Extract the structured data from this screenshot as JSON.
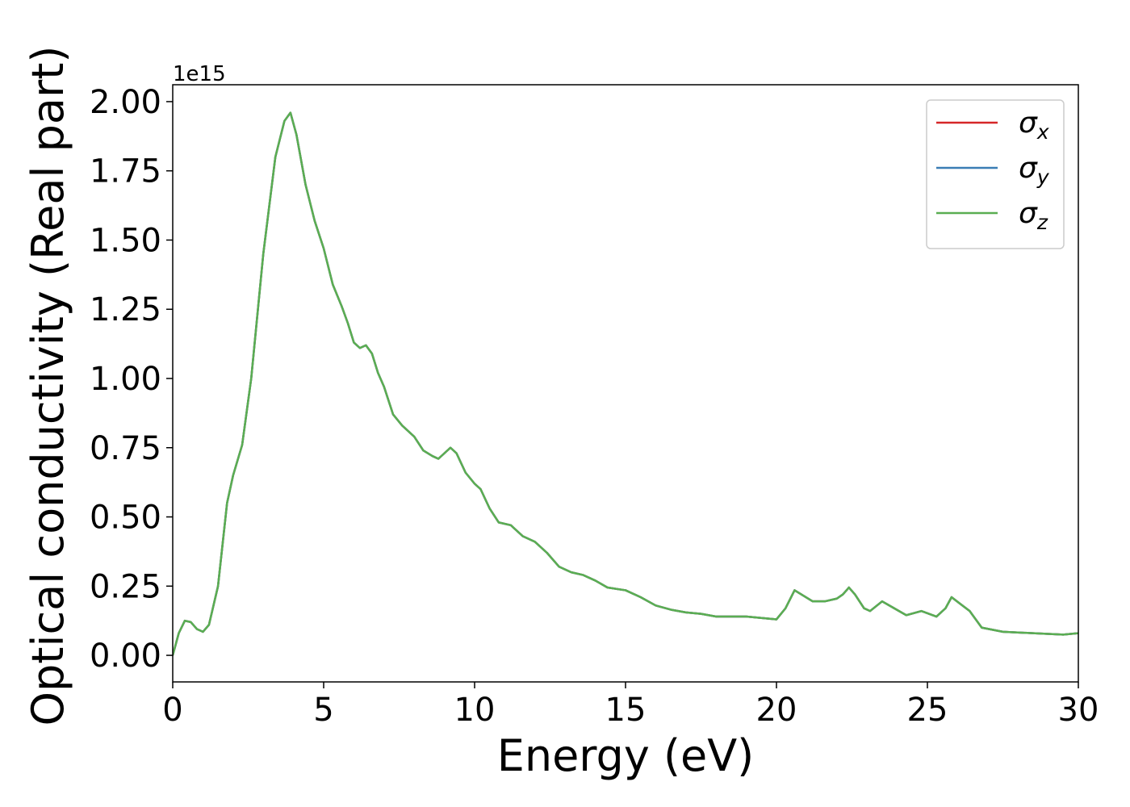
{
  "chart_data": {
    "type": "line",
    "xlabel": "Energy (eV)",
    "ylabel": "Optical conductivity (Real part)",
    "y_offset_label": "1e15",
    "xlim": [
      0,
      30
    ],
    "xticks": [
      0,
      5,
      10,
      15,
      20,
      25,
      30
    ],
    "ylim": [
      -0.096,
      2.061
    ],
    "yticks": [
      {
        "value": 0,
        "label": "0.00"
      },
      {
        "value": 0.25,
        "label": "0.25"
      },
      {
        "value": 0.5,
        "label": "0.50"
      },
      {
        "value": 0.75,
        "label": "0.75"
      },
      {
        "value": 1,
        "label": "1.00"
      },
      {
        "value": 1.25,
        "label": "1.25"
      },
      {
        "value": 1.5,
        "label": "1.50"
      },
      {
        "value": 1.75,
        "label": "1.75"
      },
      {
        "value": 2,
        "label": "2.00"
      }
    ],
    "legend": "upper right",
    "grid": false,
    "x": [
      0,
      0.2,
      0.4,
      0.6,
      0.8,
      1.0,
      1.2,
      1.5,
      1.8,
      2.0,
      2.3,
      2.6,
      3.0,
      3.4,
      3.7,
      3.9,
      4.1,
      4.4,
      4.7,
      5.0,
      5.3,
      5.6,
      5.8,
      6.0,
      6.2,
      6.4,
      6.6,
      6.8,
      7.0,
      7.3,
      7.6,
      8.0,
      8.3,
      8.6,
      8.8,
      9.0,
      9.2,
      9.4,
      9.7,
      10.0,
      10.2,
      10.5,
      10.8,
      11.2,
      11.6,
      12.0,
      12.4,
      12.8,
      13.2,
      13.6,
      14.0,
      14.4,
      15.0,
      15.5,
      16.0,
      16.5,
      17.0,
      17.5,
      18.0,
      19.0,
      19.5,
      20.0,
      20.3,
      20.6,
      20.9,
      21.2,
      21.6,
      22.0,
      22.2,
      22.4,
      22.6,
      22.9,
      23.1,
      23.5,
      23.9,
      24.3,
      24.8,
      25.3,
      25.6,
      25.8,
      26.1,
      26.4,
      26.8,
      27.5,
      28.5,
      29.5,
      30.0
    ],
    "series": [
      {
        "name": "σx",
        "color": "#d62728",
        "values": [
          0,
          0.08,
          0.125,
          0.12,
          0.095,
          0.085,
          0.11,
          0.25,
          0.55,
          0.65,
          0.76,
          1.0,
          1.45,
          1.8,
          1.93,
          1.96,
          1.88,
          1.7,
          1.57,
          1.47,
          1.34,
          1.26,
          1.2,
          1.13,
          1.11,
          1.12,
          1.09,
          1.02,
          0.97,
          0.87,
          0.83,
          0.79,
          0.74,
          0.72,
          0.71,
          0.73,
          0.75,
          0.73,
          0.66,
          0.62,
          0.6,
          0.53,
          0.48,
          0.47,
          0.43,
          0.41,
          0.37,
          0.32,
          0.3,
          0.29,
          0.27,
          0.245,
          0.235,
          0.21,
          0.18,
          0.165,
          0.155,
          0.15,
          0.14,
          0.14,
          0.135,
          0.13,
          0.17,
          0.235,
          0.215,
          0.195,
          0.195,
          0.205,
          0.22,
          0.245,
          0.22,
          0.17,
          0.16,
          0.195,
          0.17,
          0.145,
          0.16,
          0.14,
          0.17,
          0.21,
          0.185,
          0.16,
          0.1,
          0.085,
          0.08,
          0.075,
          0.08
        ]
      },
      {
        "name": "σy",
        "color": "#3a7db5",
        "values": [
          0,
          0.08,
          0.125,
          0.12,
          0.095,
          0.085,
          0.11,
          0.25,
          0.55,
          0.65,
          0.76,
          1.0,
          1.45,
          1.8,
          1.93,
          1.96,
          1.88,
          1.7,
          1.57,
          1.47,
          1.34,
          1.26,
          1.2,
          1.13,
          1.11,
          1.12,
          1.09,
          1.02,
          0.97,
          0.87,
          0.83,
          0.79,
          0.74,
          0.72,
          0.71,
          0.73,
          0.75,
          0.73,
          0.66,
          0.62,
          0.6,
          0.53,
          0.48,
          0.47,
          0.43,
          0.41,
          0.37,
          0.32,
          0.3,
          0.29,
          0.27,
          0.245,
          0.235,
          0.21,
          0.18,
          0.165,
          0.155,
          0.15,
          0.14,
          0.14,
          0.135,
          0.13,
          0.17,
          0.235,
          0.215,
          0.195,
          0.195,
          0.205,
          0.22,
          0.245,
          0.22,
          0.17,
          0.16,
          0.195,
          0.17,
          0.145,
          0.16,
          0.14,
          0.17,
          0.21,
          0.185,
          0.16,
          0.1,
          0.085,
          0.08,
          0.075,
          0.08
        ]
      },
      {
        "name": "σz",
        "color": "#5aae52",
        "values": [
          0,
          0.08,
          0.125,
          0.12,
          0.095,
          0.085,
          0.11,
          0.25,
          0.55,
          0.65,
          0.76,
          1.0,
          1.45,
          1.8,
          1.93,
          1.96,
          1.88,
          1.7,
          1.57,
          1.47,
          1.34,
          1.26,
          1.2,
          1.13,
          1.11,
          1.12,
          1.09,
          1.02,
          0.97,
          0.87,
          0.83,
          0.79,
          0.74,
          0.72,
          0.71,
          0.73,
          0.75,
          0.73,
          0.66,
          0.62,
          0.6,
          0.53,
          0.48,
          0.47,
          0.43,
          0.41,
          0.37,
          0.32,
          0.3,
          0.29,
          0.27,
          0.245,
          0.235,
          0.21,
          0.18,
          0.165,
          0.155,
          0.15,
          0.14,
          0.14,
          0.135,
          0.13,
          0.17,
          0.235,
          0.215,
          0.195,
          0.195,
          0.205,
          0.22,
          0.245,
          0.22,
          0.17,
          0.16,
          0.195,
          0.17,
          0.145,
          0.16,
          0.14,
          0.17,
          0.21,
          0.185,
          0.16,
          0.1,
          0.085,
          0.08,
          0.075,
          0.08
        ]
      }
    ]
  }
}
